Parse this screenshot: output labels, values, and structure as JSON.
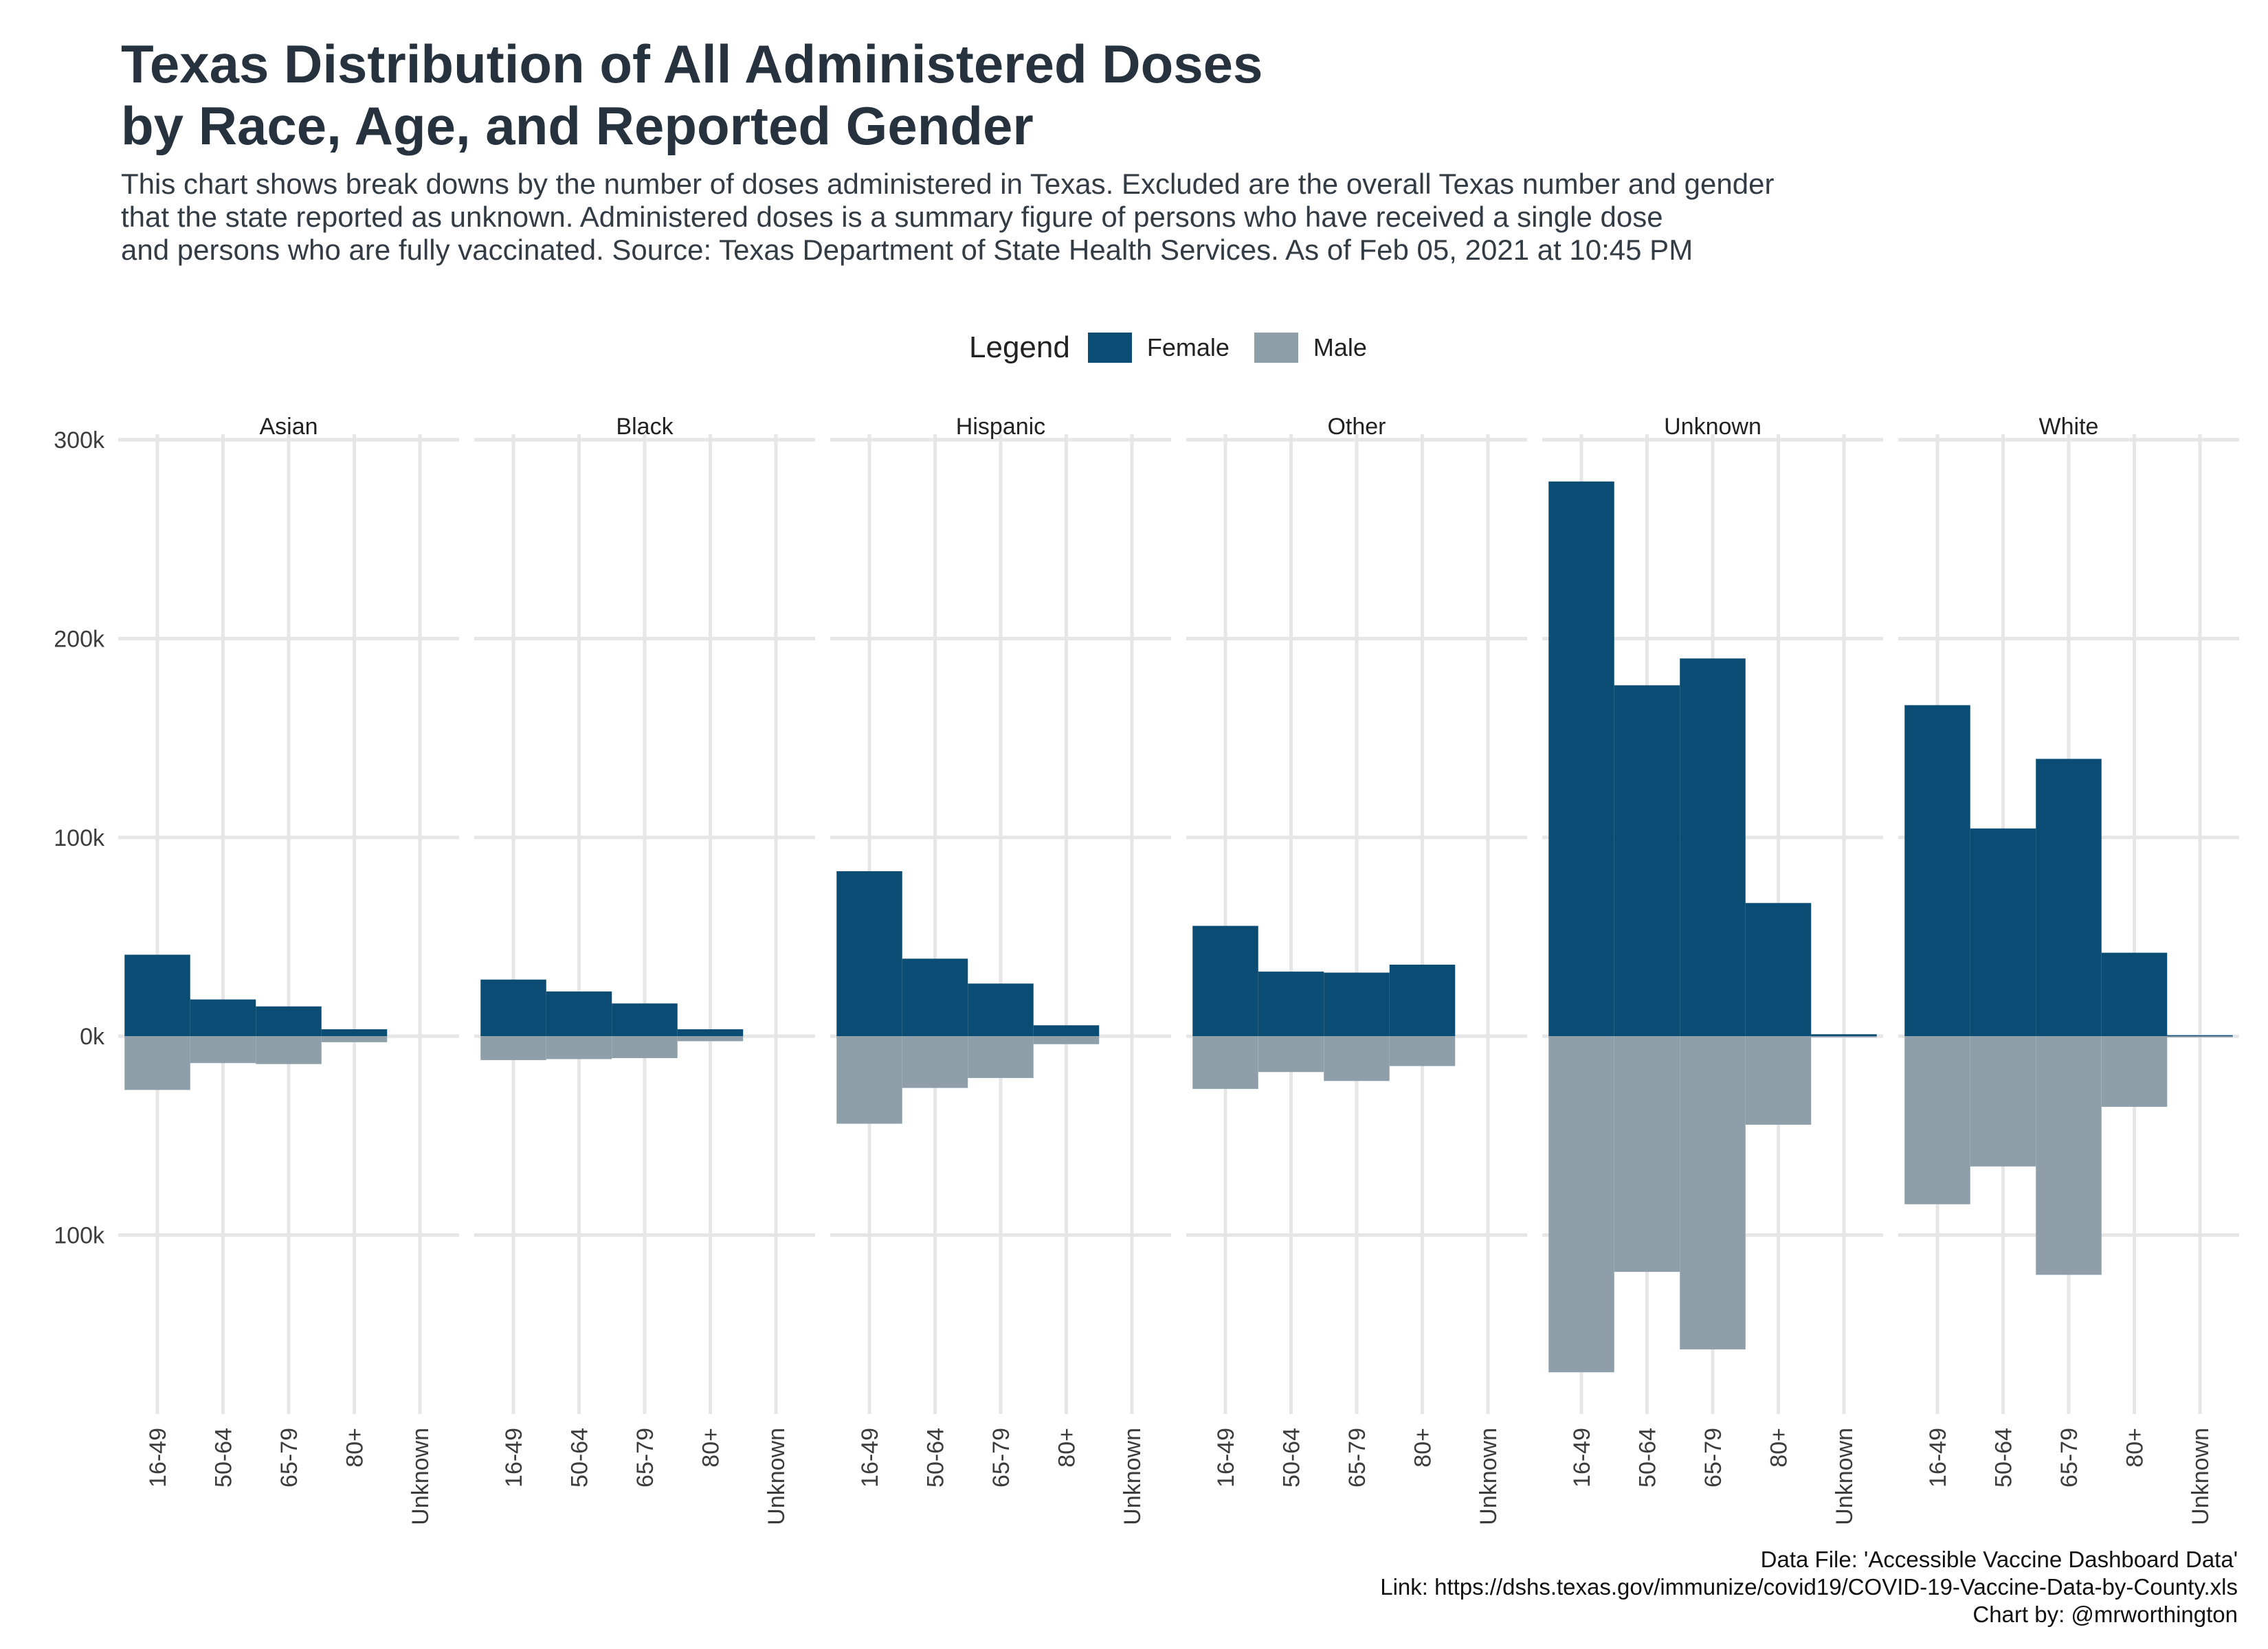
{
  "title_lines": [
    "Texas Distribution of All Administered Doses",
    "by Race, Age, and Reported Gender"
  ],
  "subtitle_lines": [
    "This chart shows break downs by the number of doses administered in Texas. Excluded are the overall Texas number and gender",
    "that the state reported as unknown. Administered doses is a summary figure of persons who have received a single dose",
    "and persons who are fully vaccinated. Source: Texas Department of State Health Services. As of Feb 05, 2021 at 10:45 PM"
  ],
  "legend": {
    "title": "Legend",
    "items": [
      {
        "label": "Female",
        "color": "#0a4c73"
      },
      {
        "label": "Male",
        "color": "#8e9faa"
      }
    ]
  },
  "caption_lines": [
    "Data File: 'Accessible Vaccine Dashboard Data'",
    "Link: https://dshs.texas.gov/immunize/covid19/COVID-19-Vaccine-Data-by-County.xls",
    "Chart by: @mrworthington"
  ],
  "chart_data": {
    "type": "bar",
    "layout": "faceted",
    "facets": [
      "Asian",
      "Black",
      "Hispanic",
      "Other",
      "Unknown",
      "White"
    ],
    "categories": [
      "16-49",
      "50-64",
      "65-79",
      "80+",
      "Unknown"
    ],
    "y_ticks": [
      {
        "value": 300000,
        "label": "300k"
      },
      {
        "value": 200000,
        "label": "200k"
      },
      {
        "value": 100000,
        "label": "100k"
      },
      {
        "value": 0,
        "label": "0k"
      },
      {
        "value": -100000,
        "label": "100k"
      }
    ],
    "ylim": [
      -190000,
      300000
    ],
    "grid": true,
    "legend_position": "top",
    "series": [
      {
        "name": "Female",
        "color": "#0a4c73",
        "values": {
          "Asian": [
            41000,
            18500,
            15000,
            3500,
            0
          ],
          "Black": [
            28500,
            22500,
            16500,
            3500,
            0
          ],
          "Hispanic": [
            83000,
            39000,
            26500,
            5500,
            0
          ],
          "Other": [
            55500,
            32500,
            32000,
            36000,
            0
          ],
          "Unknown": [
            279000,
            176500,
            190000,
            67000,
            1000
          ],
          "White": [
            166500,
            104500,
            139500,
            42000,
            500
          ]
        }
      },
      {
        "name": "Male",
        "color": "#8e9faa",
        "values": {
          "Asian": [
            -27000,
            -13500,
            -14000,
            -3000,
            0
          ],
          "Black": [
            -12000,
            -11500,
            -11000,
            -2500,
            0
          ],
          "Hispanic": [
            -44000,
            -26000,
            -21000,
            -4000,
            0
          ],
          "Other": [
            -26500,
            -18000,
            -22500,
            -15000,
            0
          ],
          "Unknown": [
            -169000,
            -118500,
            -157500,
            -44500,
            -500
          ],
          "White": [
            -84500,
            -65500,
            -120000,
            -35500,
            -500
          ]
        }
      }
    ]
  }
}
